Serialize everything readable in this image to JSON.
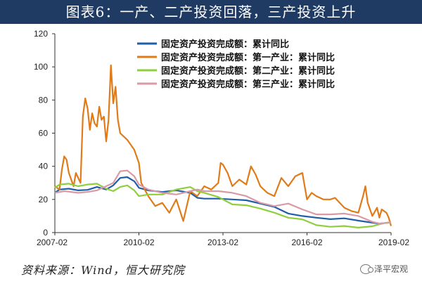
{
  "title": "图表6：一产、二产投资回落，三产投资上升",
  "source_text": "资料来源：Wind，恒大研究院",
  "watermark_text": "泽平宏观",
  "watermark_icon": "wechat-icon",
  "chart_data": {
    "type": "line",
    "xlabel": "",
    "ylabel": "",
    "ylim": [
      0,
      120
    ],
    "yticks": [
      0,
      20,
      40,
      60,
      80,
      100,
      120
    ],
    "xlim": [
      "2007-02",
      "2019-02"
    ],
    "xticks": [
      "2007-02",
      "2010-02",
      "2013-02",
      "2016-02",
      "2019-02"
    ],
    "grid": false,
    "legend_position": "top-right",
    "series": [
      {
        "name": "固定资产投资完成额：累计同比",
        "color": "#1f5ea8",
        "points": [
          [
            "2007-02",
            24
          ],
          [
            "2007-04",
            26
          ],
          [
            "2007-08",
            26.5
          ],
          [
            "2007-12",
            25.5
          ],
          [
            "2008-04",
            25.8
          ],
          [
            "2008-08",
            27.5
          ],
          [
            "2008-12",
            26
          ],
          [
            "2009-03",
            28.5
          ],
          [
            "2009-06",
            33
          ],
          [
            "2009-09",
            33.5
          ],
          [
            "2009-12",
            31
          ],
          [
            "2010-02",
            27
          ],
          [
            "2010-06",
            25.5
          ],
          [
            "2010-12",
            24.5
          ],
          [
            "2011-06",
            25.5
          ],
          [
            "2011-12",
            24
          ],
          [
            "2012-03",
            21
          ],
          [
            "2012-06",
            20.5
          ],
          [
            "2012-12",
            20.5
          ],
          [
            "2013-06",
            20
          ],
          [
            "2013-12",
            19.5
          ],
          [
            "2014-06",
            17.5
          ],
          [
            "2014-12",
            15.5
          ],
          [
            "2015-06",
            11.5
          ],
          [
            "2015-12",
            10
          ],
          [
            "2016-06",
            9
          ],
          [
            "2016-12",
            8.1
          ],
          [
            "2017-06",
            8.6
          ],
          [
            "2017-12",
            7.2
          ],
          [
            "2018-06",
            6
          ],
          [
            "2018-09",
            5.4
          ],
          [
            "2018-12",
            5.9
          ],
          [
            "2019-02",
            6.1
          ]
        ]
      },
      {
        "name": "固定资产投资完成额：第一产业：累计同比",
        "color": "#e07b1a",
        "points": [
          [
            "2007-02",
            28
          ],
          [
            "2007-04",
            26
          ],
          [
            "2007-05",
            38
          ],
          [
            "2007-06",
            46
          ],
          [
            "2007-07",
            44
          ],
          [
            "2007-08",
            36
          ],
          [
            "2007-10",
            28
          ],
          [
            "2007-11",
            36
          ],
          [
            "2008-01",
            30
          ],
          [
            "2008-02",
            70
          ],
          [
            "2008-03",
            81
          ],
          [
            "2008-04",
            75
          ],
          [
            "2008-05",
            62
          ],
          [
            "2008-06",
            72
          ],
          [
            "2008-07",
            66
          ],
          [
            "2008-08",
            64
          ],
          [
            "2008-09",
            76
          ],
          [
            "2008-10",
            68
          ],
          [
            "2008-11",
            70
          ],
          [
            "2008-12",
            55
          ],
          [
            "2009-01",
            68
          ],
          [
            "2009-02",
            101
          ],
          [
            "2009-03",
            78
          ],
          [
            "2009-04",
            88
          ],
          [
            "2009-05",
            68
          ],
          [
            "2009-06",
            60
          ],
          [
            "2009-09",
            56
          ],
          [
            "2009-12",
            50
          ],
          [
            "2010-02",
            42
          ],
          [
            "2010-03",
            30
          ],
          [
            "2010-06",
            22
          ],
          [
            "2010-09",
            16
          ],
          [
            "2010-12",
            18
          ],
          [
            "2011-03",
            12
          ],
          [
            "2011-06",
            20
          ],
          [
            "2011-09",
            7
          ],
          [
            "2011-12",
            25
          ],
          [
            "2012-03",
            22
          ],
          [
            "2012-06",
            28
          ],
          [
            "2012-09",
            26
          ],
          [
            "2012-12",
            30
          ],
          [
            "2013-01",
            42
          ],
          [
            "2013-02",
            41
          ],
          [
            "2013-04",
            36
          ],
          [
            "2013-06",
            28
          ],
          [
            "2013-09",
            32
          ],
          [
            "2013-12",
            29
          ],
          [
            "2014-02",
            40
          ],
          [
            "2014-04",
            35
          ],
          [
            "2014-06",
            28
          ],
          [
            "2014-09",
            24
          ],
          [
            "2014-12",
            22
          ],
          [
            "2015-03",
            33
          ],
          [
            "2015-06",
            28
          ],
          [
            "2015-09",
            34
          ],
          [
            "2015-12",
            36
          ],
          [
            "2016-02",
            20
          ],
          [
            "2016-04",
            24
          ],
          [
            "2016-06",
            22
          ],
          [
            "2016-09",
            20
          ],
          [
            "2016-12",
            20
          ],
          [
            "2017-02",
            21
          ],
          [
            "2017-04",
            18
          ],
          [
            "2017-06",
            15
          ],
          [
            "2017-09",
            13
          ],
          [
            "2017-12",
            12
          ],
          [
            "2018-02",
            22
          ],
          [
            "2018-03",
            28
          ],
          [
            "2018-04",
            18
          ],
          [
            "2018-06",
            10
          ],
          [
            "2018-08",
            15
          ],
          [
            "2018-09",
            9
          ],
          [
            "2018-10",
            14
          ],
          [
            "2018-12",
            12
          ],
          [
            "2019-01",
            9
          ],
          [
            "2019-02",
            4
          ]
        ]
      },
      {
        "name": "固定资产投资完成额：第二产业：累计同比",
        "color": "#8fce3c",
        "points": [
          [
            "2007-02",
            27
          ],
          [
            "2007-04",
            29
          ],
          [
            "2007-08",
            29.5
          ],
          [
            "2007-12",
            28
          ],
          [
            "2008-04",
            29
          ],
          [
            "2008-08",
            29.5
          ],
          [
            "2008-12",
            26.5
          ],
          [
            "2009-03",
            25
          ],
          [
            "2009-06",
            27.5
          ],
          [
            "2009-09",
            28.5
          ],
          [
            "2009-12",
            25.5
          ],
          [
            "2010-02",
            22
          ],
          [
            "2010-06",
            23
          ],
          [
            "2010-12",
            23
          ],
          [
            "2011-06",
            26
          ],
          [
            "2011-12",
            27.5
          ],
          [
            "2012-03",
            25
          ],
          [
            "2012-06",
            24
          ],
          [
            "2012-12",
            21.5
          ],
          [
            "2013-06",
            17
          ],
          [
            "2013-12",
            16.5
          ],
          [
            "2014-06",
            14.5
          ],
          [
            "2014-12",
            12
          ],
          [
            "2015-06",
            9
          ],
          [
            "2015-12",
            8
          ],
          [
            "2016-06",
            4.5
          ],
          [
            "2016-12",
            3.5
          ],
          [
            "2017-06",
            4
          ],
          [
            "2017-12",
            3
          ],
          [
            "2018-06",
            3.8
          ],
          [
            "2018-09",
            5
          ],
          [
            "2018-12",
            6
          ],
          [
            "2019-02",
            5.9
          ]
        ]
      },
      {
        "name": "固定资产投资完成额：第三产业：累计同比",
        "color": "#d99aa6",
        "points": [
          [
            "2007-02",
            24
          ],
          [
            "2007-06",
            25
          ],
          [
            "2007-12",
            24
          ],
          [
            "2008-04",
            24.5
          ],
          [
            "2008-08",
            25.5
          ],
          [
            "2008-12",
            28
          ],
          [
            "2009-03",
            30
          ],
          [
            "2009-06",
            37
          ],
          [
            "2009-09",
            37.5
          ],
          [
            "2009-12",
            34
          ],
          [
            "2010-02",
            29
          ],
          [
            "2010-06",
            26
          ],
          [
            "2010-12",
            24
          ],
          [
            "2011-06",
            23
          ],
          [
            "2011-12",
            25
          ],
          [
            "2012-03",
            26
          ],
          [
            "2012-06",
            25
          ],
          [
            "2012-12",
            25
          ],
          [
            "2013-06",
            24
          ],
          [
            "2013-12",
            22
          ],
          [
            "2014-06",
            18
          ],
          [
            "2014-12",
            16
          ],
          [
            "2015-06",
            17.5
          ],
          [
            "2015-12",
            14
          ],
          [
            "2016-06",
            11
          ],
          [
            "2016-12",
            11
          ],
          [
            "2017-06",
            11.5
          ],
          [
            "2017-12",
            10
          ],
          [
            "2018-06",
            6.5
          ],
          [
            "2018-09",
            5.5
          ],
          [
            "2018-12",
            5.8
          ],
          [
            "2019-02",
            6.5
          ]
        ]
      }
    ]
  }
}
